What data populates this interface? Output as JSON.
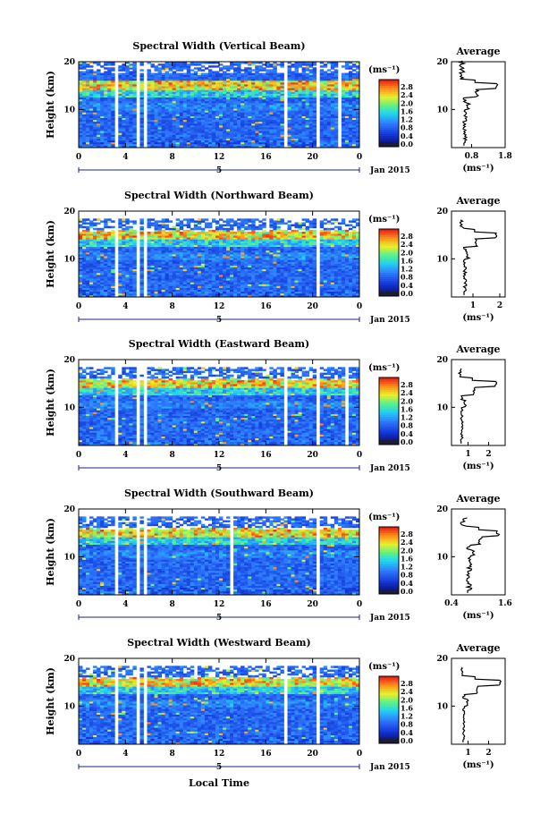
{
  "chart_data": {
    "type": "heatmap",
    "xlabel": "Local Time",
    "date_label": "5",
    "date_suffix": "Jan 2015",
    "colorbar": {
      "unit": "(ms⁻¹)",
      "ticks": [
        "2.8",
        "2.4",
        "2.0",
        "1.6",
        "1.2",
        "0.8",
        "0.4",
        "0.0"
      ],
      "min": 0.0,
      "max": 3.0
    },
    "x_ticks": [
      "0",
      "4",
      "8",
      "12",
      "16",
      "20",
      "0"
    ],
    "x_range": [
      0,
      24
    ],
    "y_label": "Height (km)",
    "y_ticks": [
      "10",
      "20"
    ],
    "y_range": [
      2,
      20
    ],
    "average_title": "Average",
    "average_unit": "(ms⁻¹)",
    "panels": [
      {
        "title": "Spectral Width (Vertical Beam)",
        "avg_xlim": [
          0.2,
          1.8
        ],
        "avg_ticks": [
          "0.8",
          "1.8"
        ],
        "avg_tick_values": [
          0.8,
          1.8
        ],
        "gaps_hours": [
          3.2,
          5.1,
          5.7,
          17.7,
          20.4,
          22.3
        ],
        "top_km": 20,
        "peak_avg": 1.6,
        "base_avg": 0.6
      },
      {
        "title": "Spectral Width (Northward Beam)",
        "avg_xlim": [
          0.2,
          2.2
        ],
        "avg_ticks": [
          "1",
          "2"
        ],
        "avg_tick_values": [
          1,
          2
        ],
        "gaps_hours": [
          3.2,
          5.1,
          5.6,
          20.4
        ],
        "top_km": 18,
        "peak_avg": 1.9,
        "base_avg": 0.7
      },
      {
        "title": "Spectral Width (Eastward Beam)",
        "avg_xlim": [
          0.2,
          2.8
        ],
        "avg_ticks": [
          "1",
          "2"
        ],
        "avg_tick_values": [
          1,
          2
        ],
        "gaps_hours": [
          3.2,
          5.1,
          5.6,
          17.7,
          20.4,
          22.8
        ],
        "top_km": 18,
        "peak_avg": 2.4,
        "base_avg": 0.7
      },
      {
        "title": "Spectral Width (Southward Beam)",
        "avg_xlim": [
          0.4,
          1.6
        ],
        "avg_ticks": [
          "0.4",
          "1.6"
        ],
        "avg_tick_values": [
          0.4,
          1.6
        ],
        "gaps_hours": [
          3.2,
          5.1,
          5.6,
          13.0,
          20.4
        ],
        "top_km": 18,
        "peak_avg": 1.5,
        "base_avg": 0.8
      },
      {
        "title": "Spectral Width (Westward Beam)",
        "avg_xlim": [
          0.2,
          2.8
        ],
        "avg_ticks": [
          "1",
          "2"
        ],
        "avg_tick_values": [
          1,
          2
        ],
        "gaps_hours": [
          3.2,
          5.1,
          5.6,
          17.7,
          20.4
        ],
        "top_km": 18,
        "peak_avg": 2.6,
        "base_avg": 0.8
      }
    ]
  }
}
